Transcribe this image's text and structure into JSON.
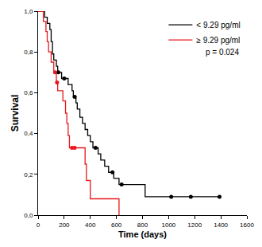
{
  "chart_data": {
    "type": "step",
    "x_label": "Time (days)",
    "y_label": "Survival",
    "annotation": "p = 0.024",
    "xlim": [
      0,
      1600
    ],
    "xticks": [
      0,
      200,
      400,
      600,
      800,
      1000,
      1200,
      1400,
      1600
    ],
    "ylim": [
      0,
      1
    ],
    "yticks": [
      {
        "value": 0,
        "label": "0,0"
      },
      {
        "value": 0.2,
        "label": "0,2"
      },
      {
        "value": 0.4,
        "label": "0,4"
      },
      {
        "value": 0.6,
        "label": "0,6"
      },
      {
        "value": 0.8,
        "label": "0,8"
      },
      {
        "value": 1,
        "label": "1,0"
      }
    ],
    "grid": false,
    "legend": "upper right",
    "marker": "circle",
    "series": [
      {
        "name": "< 9.29 pg/ml",
        "color": "#000000",
        "x": [
          0,
          50,
          70,
          90,
          100,
          110,
          120,
          140,
          150,
          180,
          230,
          260,
          270,
          290,
          300,
          320,
          340,
          360,
          380,
          400,
          420,
          460,
          480,
          510,
          540,
          580,
          620,
          820,
          1390
        ],
        "values": [
          1.0,
          0.97,
          0.94,
          0.91,
          0.85,
          0.79,
          0.76,
          0.73,
          0.7,
          0.67,
          0.64,
          0.61,
          0.58,
          0.55,
          0.52,
          0.48,
          0.45,
          0.42,
          0.39,
          0.36,
          0.33,
          0.3,
          0.27,
          0.24,
          0.21,
          0.18,
          0.15,
          0.09,
          0.09
        ],
        "censored_x": [
          155,
          200,
          280,
          440,
          570,
          640,
          1020,
          1170,
          1390
        ],
        "censored_values": [
          0.7,
          0.67,
          0.58,
          0.33,
          0.21,
          0.15,
          0.09,
          0.09,
          0.09
        ]
      },
      {
        "name": "≥ 9.29 pg/ml",
        "color": "#e8191c",
        "x": [
          0,
          40,
          60,
          70,
          80,
          100,
          120,
          140,
          150,
          190,
          210,
          220,
          230,
          240,
          360,
          370,
          400,
          620
        ],
        "values": [
          1.0,
          0.95,
          0.9,
          0.85,
          0.8,
          0.75,
          0.7,
          0.65,
          0.61,
          0.56,
          0.5,
          0.45,
          0.39,
          0.33,
          0.25,
          0.17,
          0.08,
          0.0
        ],
        "censored_x": [
          130,
          145,
          260,
          280
        ],
        "censored_values": [
          0.7,
          0.65,
          0.33,
          0.33
        ]
      }
    ]
  }
}
